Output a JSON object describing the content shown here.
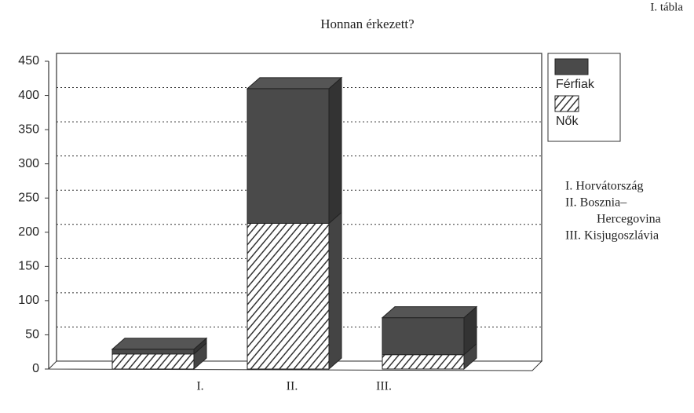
{
  "chart_data": {
    "type": "stacked_bar_3d",
    "title": "Honnan érkezett?",
    "corner_label": "I. tábla",
    "categories": [
      "I.",
      "II.",
      "III."
    ],
    "series": [
      {
        "name": "Nők",
        "color": "#333333",
        "pattern": "hatch",
        "values": [
          22,
          213,
          21
        ]
      },
      {
        "name": "Férfiak",
        "color": "#4a4a4a",
        "pattern": "solid",
        "values": [
          7,
          197,
          54
        ]
      }
    ],
    "ylim": [
      0,
      450
    ],
    "yticks": [
      0,
      50,
      100,
      150,
      200,
      250,
      300,
      350,
      400,
      450
    ],
    "grid": true,
    "legend": "right",
    "note": [
      "I. Horvátország",
      "II. Bosznia–",
      "Hercegovina",
      "III. Kisjugoszlávia"
    ]
  }
}
